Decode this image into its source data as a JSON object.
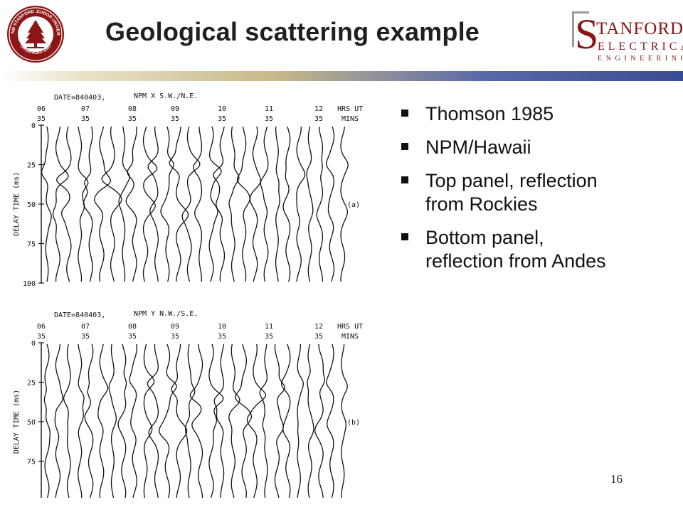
{
  "slide": {
    "title": "Geological scattering example",
    "page_number": "16",
    "accent_color": "#8c1515",
    "header_rule_colors": [
      "#e9e2c8",
      "#c9b98a",
      "#3a4b95"
    ]
  },
  "seal": {
    "icon": "stanford-university-seal-icon",
    "text": "LELAND STANFORD JUNIOR UNIVERSITY",
    "organized": "ORGANIZED 1891"
  },
  "logo": {
    "icon": "stanford-electrical-engineering-logo",
    "letter": "S",
    "line1": "TANFORD",
    "line2": "ELECTRICAL",
    "line3": "ENGINEERING"
  },
  "bullets": [
    {
      "text": "Thomson 1985"
    },
    {
      "text": "NPM/Hawaii"
    },
    {
      "text": "Top panel, reflection from Rockies"
    },
    {
      "text": "Bottom panel, reflection from Andes"
    }
  ],
  "figure": {
    "hours": [
      {
        "hr": "06",
        "min": "35"
      },
      {
        "hr": "07",
        "min": "35"
      },
      {
        "hr": "08",
        "min": "35"
      },
      {
        "hr": "09",
        "min": "35"
      },
      {
        "hr": "10",
        "min": "35"
      },
      {
        "hr": "11",
        "min": "35"
      },
      {
        "hr": "12",
        "min": "35"
      }
    ],
    "hours_label": "HRS UT",
    "mins_label": "MINS",
    "ylabel": "DELAY TIME (ms)",
    "yticks": [
      "0",
      "25",
      "50",
      "75",
      "100"
    ],
    "panels": [
      {
        "date": "DATE=840403,",
        "component": "NPM X S.W./N.E.",
        "label": "(a)"
      },
      {
        "date": "DATE=840403,",
        "component": "NPM Y N.W./S.E.",
        "label": "(b)"
      }
    ]
  }
}
